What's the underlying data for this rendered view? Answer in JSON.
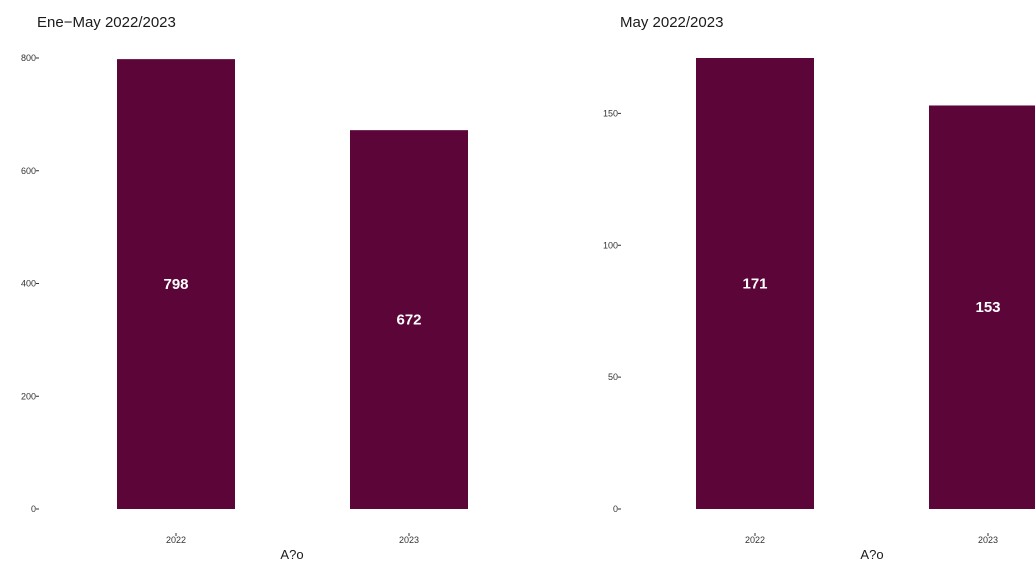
{
  "chart_data": [
    {
      "type": "bar",
      "title": "Ene−May 2022/2023",
      "xlabel": "A?o",
      "ylabel": "",
      "categories": [
        "2022",
        "2023"
      ],
      "values": [
        798,
        672
      ],
      "value_labels": [
        "798",
        "672"
      ],
      "yticks": [
        0,
        200,
        400,
        600,
        800
      ],
      "ylim": [
        0,
        800
      ],
      "bar_color": "#5c0539",
      "grid": false,
      "legend": "none"
    },
    {
      "type": "bar",
      "title": "May 2022/2023",
      "xlabel": "A?o",
      "ylabel": "",
      "categories": [
        "2022",
        "2023"
      ],
      "values": [
        171,
        153
      ],
      "value_labels": [
        "171",
        "153"
      ],
      "yticks": [
        0,
        50,
        100,
        150
      ],
      "ylim": [
        0,
        171
      ],
      "bar_color": "#5c0539",
      "grid": false,
      "legend": "none"
    }
  ]
}
